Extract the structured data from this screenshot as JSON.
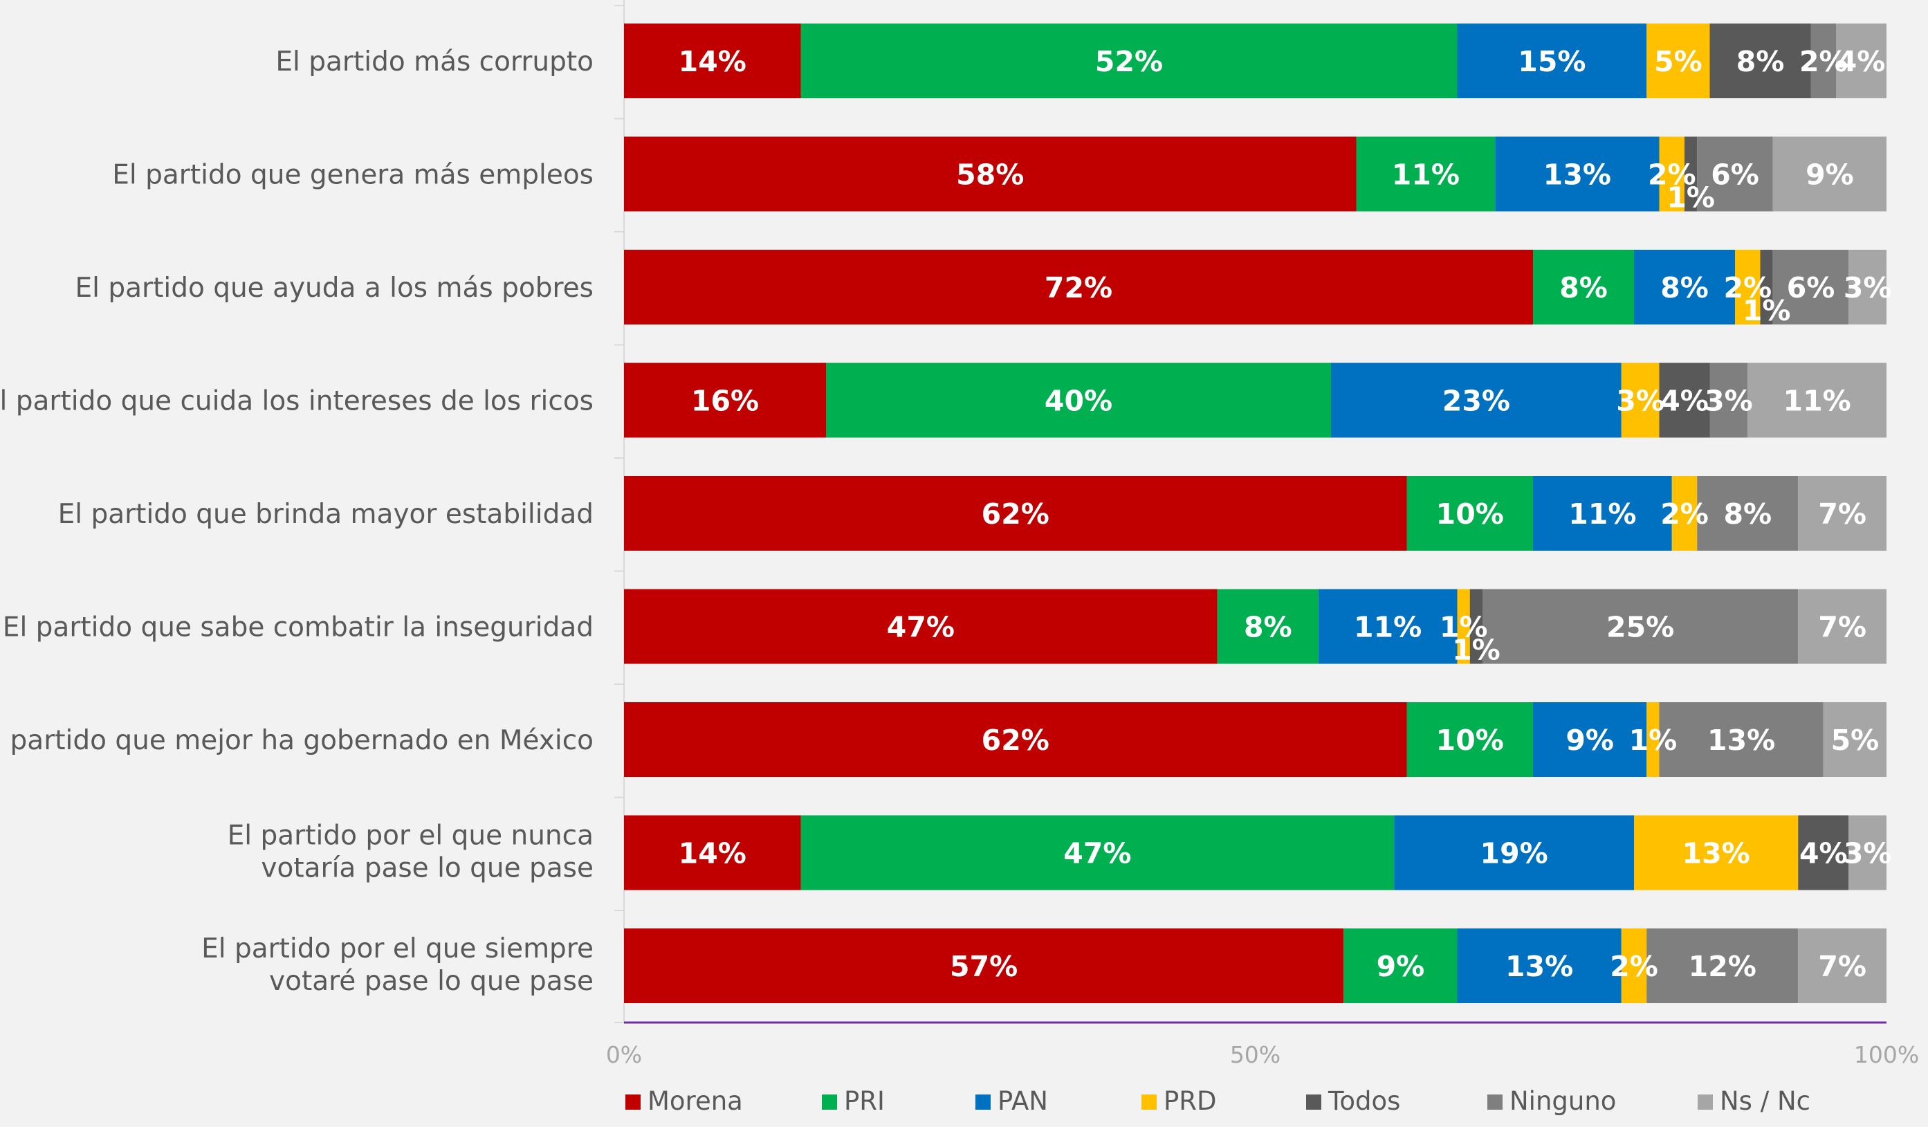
{
  "chart_data": {
    "type": "bar",
    "orientation": "horizontal",
    "stacked": true,
    "categories": [
      "El partido más corrupto",
      "El partido que genera más empleos",
      "El partido que ayuda a los más pobres",
      "El partido que cuida los intereses de los ricos",
      "El partido que brinda mayor estabilidad",
      "El partido que sabe combatir la inseguridad",
      "El partido que mejor ha gobernado en México",
      "El partido por el que nunca votaría pase lo que pase",
      "El partido por el que siempre votaré pase lo que pase"
    ],
    "series": [
      {
        "name": "Morena",
        "color": "#c00000",
        "values": [
          14,
          58,
          72,
          16,
          62,
          47,
          62,
          14,
          57
        ]
      },
      {
        "name": "PRI",
        "color": "#00b050",
        "values": [
          52,
          11,
          8,
          40,
          10,
          8,
          10,
          47,
          9
        ]
      },
      {
        "name": "PAN",
        "color": "#0070c0",
        "values": [
          15,
          13,
          8,
          23,
          11,
          11,
          9,
          19,
          13
        ]
      },
      {
        "name": "PRD",
        "color": "#ffc000",
        "values": [
          5,
          2,
          2,
          3,
          2,
          1,
          1,
          13,
          2
        ]
      },
      {
        "name": "Todos",
        "color": "#595959",
        "values": [
          8,
          1,
          1,
          4,
          0,
          1,
          0,
          4,
          0
        ]
      },
      {
        "name": "Ninguno",
        "color": "#7f7f7f",
        "values": [
          2,
          6,
          6,
          3,
          8,
          25,
          13,
          0,
          12
        ]
      },
      {
        "name": "Ns / Nc",
        "color": "#a6a6a6",
        "values": [
          4,
          9,
          3,
          11,
          7,
          7,
          5,
          3,
          7
        ]
      }
    ],
    "value_labels": [
      [
        "14%",
        "52%",
        "15%",
        "5%",
        "8%",
        "2%",
        "4%"
      ],
      [
        "58%",
        "11%",
        "13%",
        "2%",
        "1%",
        "6%",
        "9%"
      ],
      [
        "72%",
        "8%",
        "8%",
        "2%",
        "1%",
        "6%",
        "3%"
      ],
      [
        "16%",
        "40%",
        "23%",
        "3%",
        "4%",
        "3%",
        "11%"
      ],
      [
        "62%",
        "10%",
        "11%",
        "2%",
        "",
        "8%",
        "7%"
      ],
      [
        "47%",
        "8%",
        "11%",
        "1%",
        "1%",
        "25%",
        "7%"
      ],
      [
        "62%",
        "10%",
        "9%",
        "1%",
        "",
        "13%",
        "5%"
      ],
      [
        "14%",
        "47%",
        "19%",
        "13%",
        "4%",
        "",
        "3%"
      ],
      [
        "57%",
        "9%",
        "13%",
        "2%",
        "",
        "12%",
        "7%"
      ]
    ],
    "xlim": [
      0,
      100
    ],
    "xticks": [
      "0%",
      "50%",
      "100%"
    ],
    "legend_position": "bottom",
    "grid": false
  }
}
